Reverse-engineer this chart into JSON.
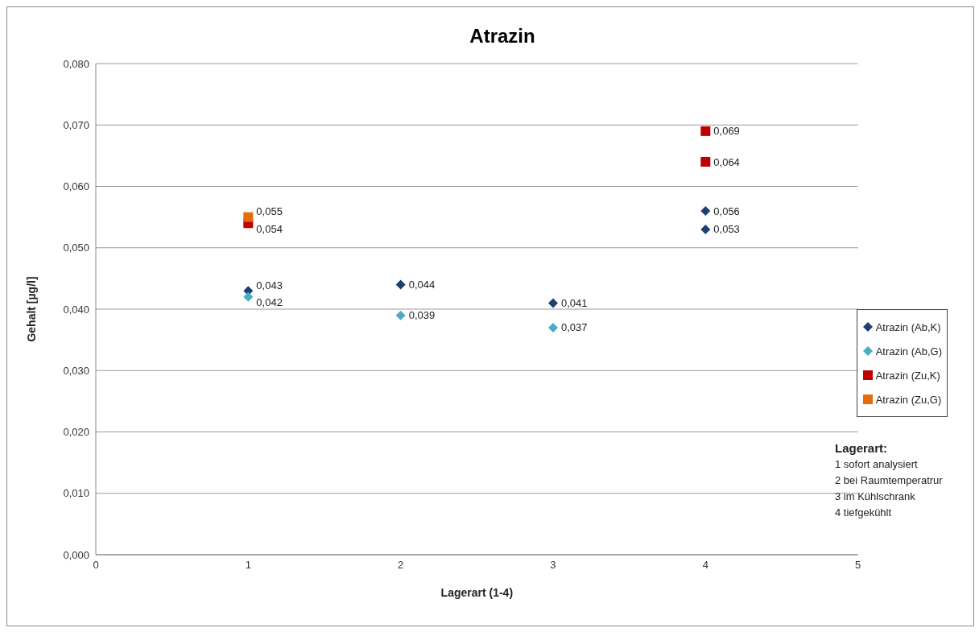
{
  "chart_data": {
    "type": "scatter",
    "title": "Atrazin",
    "xlabel": "Lagerart (1-4)",
    "ylabel": "Gehalt [µg/l]",
    "xlim": [
      0,
      5
    ],
    "xticks": [
      0,
      1,
      2,
      3,
      4,
      5
    ],
    "ylim": [
      0,
      0.08
    ],
    "yticks": [
      {
        "value": 0,
        "label": "0,000"
      },
      {
        "value": 0.01,
        "label": "0,010"
      },
      {
        "value": 0.02,
        "label": "0,020"
      },
      {
        "value": 0.03,
        "label": "0,030"
      },
      {
        "value": 0.04,
        "label": "0,040"
      },
      {
        "value": 0.05,
        "label": "0,050"
      },
      {
        "value": 0.06,
        "label": "0,060"
      },
      {
        "value": 0.07,
        "label": "0,070"
      },
      {
        "value": 0.08,
        "label": "0,080"
      }
    ],
    "grid": "y",
    "legend": "right",
    "series": [
      {
        "name": "Atrazin (Ab,K)",
        "color": "#1f3f73",
        "marker": "diamond",
        "x": [
          1,
          2,
          3,
          4,
          4
        ],
        "values": [
          0.043,
          0.044,
          0.041,
          0.056,
          0.053
        ],
        "value_labels": [
          "0,043",
          "0,044",
          "0,041",
          "0,056",
          "0,053"
        ]
      },
      {
        "name": "Atrazin (Ab,G)",
        "color": "#4bacc6",
        "marker": "diamond",
        "x": [
          1,
          2,
          3
        ],
        "values": [
          0.042,
          0.039,
          0.037
        ],
        "value_labels": [
          "0,042",
          "0,039",
          "0,037"
        ]
      },
      {
        "name": "Atrazin (Zu,K)",
        "color": "#c00000",
        "marker": "square",
        "x": [
          1,
          4,
          4
        ],
        "values": [
          0.054,
          0.069,
          0.064
        ],
        "value_labels": [
          "0,054",
          "0,069",
          "0,064"
        ]
      },
      {
        "name": "Atrazin (Zu,G)",
        "color": "#e46c0a",
        "marker": "square",
        "x": [
          1
        ],
        "values": [
          0.055
        ],
        "value_labels": [
          "0,055"
        ]
      }
    ],
    "annotations": [
      "Lagerart:",
      "1 sofort analysiert",
      "2 bei Raumtemperatrur",
      "3 im Kühlschrank",
      "4 tiefgekühlt"
    ]
  }
}
